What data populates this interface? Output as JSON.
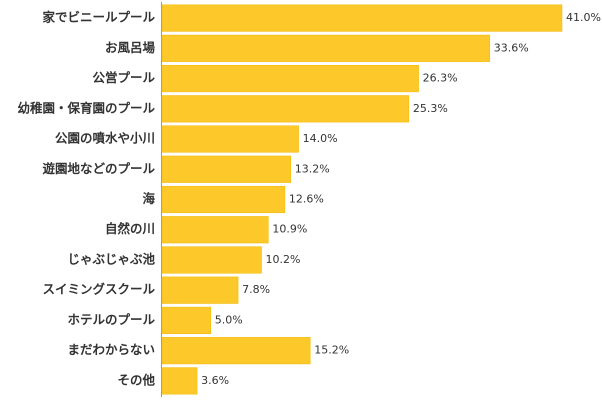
{
  "chart_data": {
    "type": "barh",
    "categories": [
      "家でビニールプール",
      "お風呂場",
      "公営プール",
      "幼稚園・保育園のプール",
      "公園の噴水や小川",
      "遊園地などのプール",
      "海",
      "自然の川",
      "じゃぶじゃぶ池",
      "スイミングスクール",
      "ホテルのプール",
      "まだわからない",
      "その他"
    ],
    "values": [
      41.0,
      33.6,
      26.3,
      25.3,
      14.0,
      13.2,
      12.6,
      10.9,
      10.2,
      7.8,
      5.0,
      15.2,
      3.6
    ],
    "value_labels": [
      "41.0%",
      "33.6%",
      "26.3%",
      "25.3%",
      "14.0%",
      "13.2%",
      "12.6%",
      "10.9%",
      "10.2%",
      "7.8%",
      "5.0%",
      "15.2%",
      "3.6%"
    ],
    "color": "#fdc82a"
  }
}
